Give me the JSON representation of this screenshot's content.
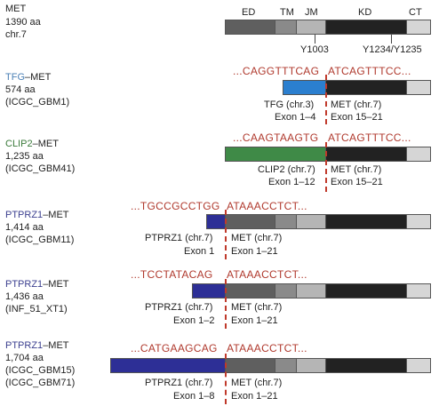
{
  "colors": {
    "extracellular": "#5f5f5f",
    "transmembrane": "#8a8a8a",
    "juxtamembrane": "#b5b5b5",
    "kinase": "#222222",
    "c_tail": "#d6d6d6",
    "tfg": "#2b7fcf",
    "clip2": "#3f8a47",
    "ptprz1": "#2d2f96",
    "sequence": "#b03a2e"
  },
  "met": {
    "name": "MET",
    "length": "1390 aa",
    "chromosome": "chr.7",
    "domains": [
      "ED",
      "TM",
      "JM",
      "KD",
      "CT"
    ],
    "sites": [
      "Y1003",
      "Y1234/Y1235"
    ]
  },
  "fusions": [
    {
      "partner": "TFG",
      "partner_sep": "–MET",
      "length": "574 aa",
      "sample": "(ICGC_GBM1)",
      "seq_left": "...CAGGTTTCAG",
      "seq_right": "ATCAGTTTCC...",
      "left_label": "TFG (chr.3)",
      "left_exons": "Exon 1–4",
      "right_label": "MET (chr.7)",
      "right_exons": "Exon 15–21"
    },
    {
      "partner": "CLIP2",
      "partner_sep": "–MET",
      "length": "1,235 aa",
      "sample": "(ICGC_GBM41)",
      "seq_left": "...CAAGTAAGTG",
      "seq_right": "ATCAGTTTCC...",
      "left_label": "CLIP2 (chr.7)",
      "left_exons": "Exon 1–12",
      "right_label": "MET (chr.7)",
      "right_exons": "Exon 15–21"
    },
    {
      "partner": "PTPRZ1",
      "partner_sep": "–MET",
      "length": "1,414 aa",
      "sample": "(ICGC_GBM11)",
      "seq_left": "...TGCCGCCTGG",
      "seq_right": "ATAAACCTCT...",
      "left_label": "PTPRZ1 (chr.7)",
      "left_exons": "Exon 1",
      "right_label": "MET (chr.7)",
      "right_exons": "Exon 1–21"
    },
    {
      "partner": "PTPRZ1",
      "partner_sep": "–MET",
      "length": "1,436 aa",
      "sample": "(INF_51_XT1)",
      "seq_left": "...TCCTATACAG",
      "seq_right": "ATAAACCTCT...",
      "left_label": "PTPRZ1 (chr.7)",
      "left_exons": "Exon 1–2",
      "right_label": "MET (chr.7)",
      "right_exons": "Exon 1–21"
    },
    {
      "partner": "PTPRZ1",
      "partner_sep": "–MET",
      "length": "1,704 aa",
      "sample": "(ICGC_GBM15)",
      "sample2": "(ICGC_GBM71)",
      "seq_left": "...CATGAAGCAG",
      "seq_right": "ATAAACCTCT...",
      "left_label": "PTPRZ1 (chr.7)",
      "left_exons": "Exon 1–8",
      "right_label": "MET (chr.7)",
      "right_exons": "Exon 1–21"
    }
  ]
}
